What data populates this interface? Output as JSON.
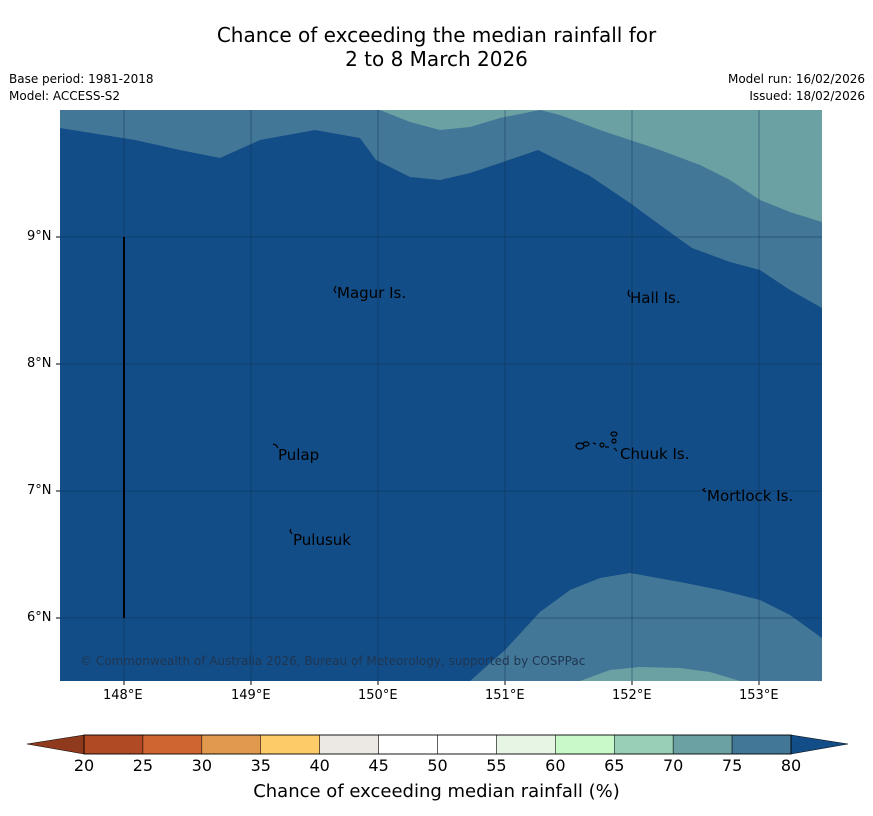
{
  "title": {
    "line1": "Chance of exceeding the median rainfall for",
    "line2": "2 to 8 March 2026"
  },
  "meta": {
    "base_period": "Base period: 1981-2018",
    "model": "Model: ACCESS-S2",
    "model_run": "Model run: 16/02/2026",
    "issued": "Issued: 18/02/2026"
  },
  "map": {
    "lat_labels": [
      "9°N",
      "8°N",
      "7°N",
      "6°N"
    ],
    "lon_labels": [
      "148°E",
      "149°E",
      "150°E",
      "151°E",
      "152°E",
      "153°E"
    ],
    "places": [
      {
        "name": "Magur Is.",
        "lon": 149.7,
        "lat": 8.55
      },
      {
        "name": "Hall Is.",
        "lon": 151.98,
        "lat": 8.5
      },
      {
        "name": "Pulap",
        "lon": 149.2,
        "lat": 7.28
      },
      {
        "name": "Chuuk Is.",
        "lon": 151.85,
        "lat": 7.3
      },
      {
        "name": "Mortlock Is.",
        "lon": 152.58,
        "lat": 6.97
      },
      {
        "name": "Pulusuk",
        "lon": 149.32,
        "lat": 6.62
      }
    ],
    "copyright": "© Commonwealth of Australia 2026, Bureau of Meteorology, supported by COSPPac",
    "colors": {
      "above_80": "#134d87",
      "75_80": "#437797",
      "70_75": "#6ca1a4"
    }
  },
  "colorbar": {
    "title": "Chance of exceeding median rainfall (%)",
    "ticks": [
      "20",
      "25",
      "30",
      "35",
      "40",
      "45",
      "50",
      "55",
      "60",
      "65",
      "70",
      "75",
      "80"
    ],
    "below_color": "#8f3a1c",
    "above_color": "#134d87",
    "bins": [
      {
        "range": "20-25",
        "color": "#b04a25"
      },
      {
        "range": "25-30",
        "color": "#cf6632"
      },
      {
        "range": "30-35",
        "color": "#e19a4d"
      },
      {
        "range": "35-40",
        "color": "#fdcb68"
      },
      {
        "range": "40-45",
        "color": "#ece8e3"
      },
      {
        "range": "45-50",
        "color": "#ffffff"
      },
      {
        "range": "50-55",
        "color": "#ffffff"
      },
      {
        "range": "55-60",
        "color": "#e7f5e5"
      },
      {
        "range": "60-65",
        "color": "#c9f9c9"
      },
      {
        "range": "65-70",
        "color": "#98cfb6"
      },
      {
        "range": "70-75",
        "color": "#6ca1a4"
      },
      {
        "range": "75-80",
        "color": "#437797"
      }
    ]
  }
}
